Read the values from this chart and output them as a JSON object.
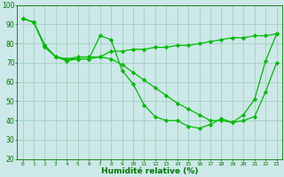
{
  "title": "",
  "xlabel": "Humidité relative (%)",
  "xlim": [
    -0.5,
    23.5
  ],
  "ylim": [
    20,
    100
  ],
  "xticks": [
    0,
    1,
    2,
    3,
    4,
    5,
    6,
    7,
    8,
    9,
    10,
    11,
    12,
    13,
    14,
    15,
    16,
    17,
    18,
    19,
    20,
    21,
    22,
    23
  ],
  "yticks": [
    20,
    30,
    40,
    50,
    60,
    70,
    80,
    90,
    100
  ],
  "bg_color": "#cce8e8",
  "grid_color": "#99ccbb",
  "line_color": "#00bb00",
  "marker": "D",
  "markersize": 2.2,
  "linewidth": 0.9,
  "lines": [
    [
      93,
      91,
      78,
      73,
      71,
      72,
      72,
      84,
      82,
      66,
      59,
      48,
      42,
      40,
      40,
      37,
      36,
      38,
      41,
      39,
      43,
      51,
      71,
      85
    ],
    [
      93,
      91,
      79,
      73,
      72,
      73,
      73,
      73,
      76,
      76,
      77,
      77,
      78,
      78,
      79,
      79,
      80,
      81,
      82,
      83,
      83,
      84,
      84,
      85
    ],
    [
      93,
      91,
      79,
      73,
      72,
      72,
      72,
      73,
      72,
      69,
      65,
      61,
      57,
      53,
      49,
      46,
      43,
      40,
      40,
      39,
      40,
      42,
      55,
      70
    ]
  ]
}
